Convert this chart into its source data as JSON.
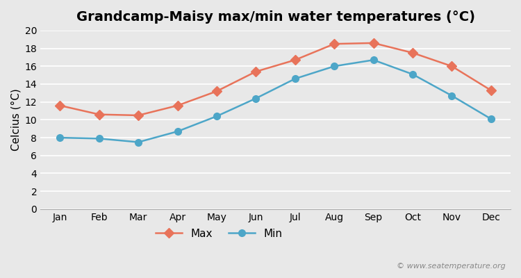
{
  "title": "Grandcamp-Maisy max/min water temperatures (°C)",
  "months": [
    "Jan",
    "Feb",
    "Mar",
    "Apr",
    "May",
    "Jun",
    "Jul",
    "Aug",
    "Sep",
    "Oct",
    "Nov",
    "Dec"
  ],
  "max_temps": [
    11.6,
    10.6,
    10.5,
    11.6,
    13.2,
    15.4,
    16.7,
    18.5,
    18.6,
    17.5,
    16.0,
    13.3
  ],
  "min_temps": [
    8.0,
    7.9,
    7.5,
    8.7,
    10.4,
    12.4,
    14.6,
    16.0,
    16.7,
    15.1,
    12.7,
    10.1
  ],
  "max_color": "#e8735a",
  "min_color": "#4da6c8",
  "bg_color": "#e8e8e8",
  "ylabel": "Celcius (°C)",
  "ylim": [
    0,
    20
  ],
  "yticks": [
    0,
    2,
    4,
    6,
    8,
    10,
    12,
    14,
    16,
    18,
    20
  ],
  "watermark": "© www.seatemperature.org",
  "title_fontsize": 14,
  "label_fontsize": 11,
  "tick_fontsize": 10,
  "watermark_fontsize": 8
}
